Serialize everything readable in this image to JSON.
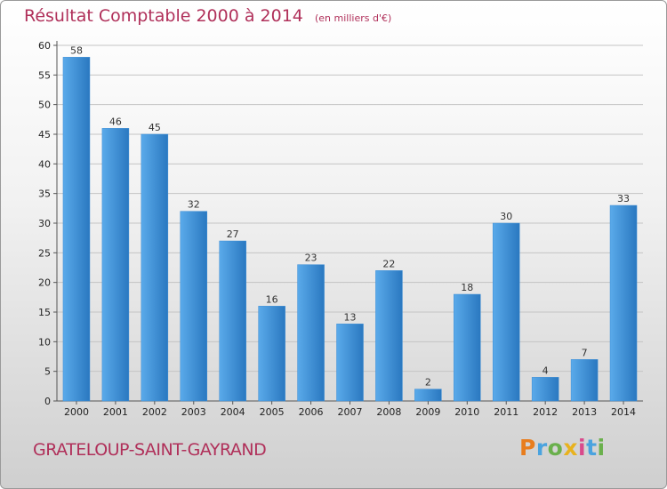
{
  "chart_data": {
    "type": "bar",
    "title": "Résultat Comptable 2000 à 2014",
    "subtitle": "(en milliers d'€)",
    "categories": [
      "2000",
      "2001",
      "2002",
      "2003",
      "2004",
      "2005",
      "2006",
      "2007",
      "2008",
      "2009",
      "2010",
      "2011",
      "2012",
      "2013",
      "2014"
    ],
    "values": [
      58,
      46,
      45,
      32,
      27,
      16,
      23,
      13,
      22,
      2,
      18,
      30,
      4,
      7,
      33
    ],
    "yticks": [
      0,
      5,
      10,
      15,
      20,
      25,
      30,
      35,
      40,
      45,
      50,
      55,
      60
    ],
    "ylim": [
      0,
      60
    ],
    "xlabel": "",
    "ylabel": "",
    "grid": true,
    "bar_color": "#3d8ed6"
  },
  "footer": {
    "commune": "GRATELOUP-SAINT-GAYRAND",
    "logo": {
      "letters": [
        "P",
        "r",
        "o",
        "x",
        "i",
        "t",
        "i"
      ],
      "colors": [
        "#e87d1e",
        "#4aa3df",
        "#6ab04c",
        "#e8b21e",
        "#d94a8c",
        "#4aa3df",
        "#6ab04c"
      ]
    }
  }
}
